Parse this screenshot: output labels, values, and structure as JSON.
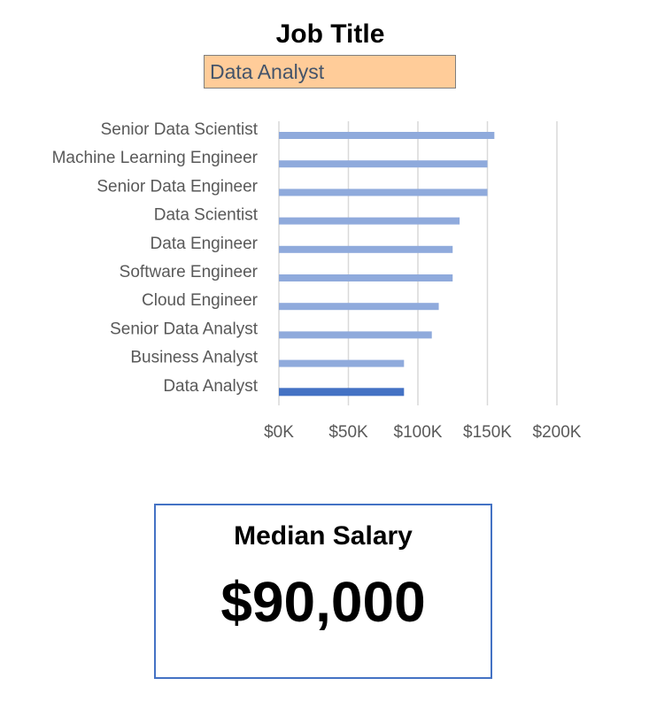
{
  "header": {
    "label": "Job Title"
  },
  "filter": {
    "selected": "Data Analyst"
  },
  "colors": {
    "bar": "#8faadc",
    "highlight": "#4472c4",
    "grid": "#d9d9d9",
    "selector_fill": "#ffcc99",
    "card_border": "#4472c4"
  },
  "chart_data": {
    "type": "bar",
    "orientation": "horizontal",
    "categories": [
      "Senior Data Scientist",
      "Machine Learning Engineer",
      "Senior Data Engineer",
      "Data Scientist",
      "Data Engineer",
      "Software Engineer",
      "Cloud Engineer",
      "Senior Data Analyst",
      "Business Analyst",
      "Data Analyst"
    ],
    "values": [
      155000,
      150000,
      150000,
      130000,
      125000,
      125000,
      115000,
      110000,
      90000,
      90000
    ],
    "highlighted": "Data Analyst",
    "xlim": [
      0,
      200000
    ],
    "xticks": [
      0,
      50000,
      100000,
      150000,
      200000
    ],
    "xtick_labels": [
      "$0K",
      "$50K",
      "$100K",
      "$150K",
      "$200K"
    ],
    "grid": true
  },
  "summary": {
    "title": "Median Salary",
    "value": "$90,000"
  }
}
